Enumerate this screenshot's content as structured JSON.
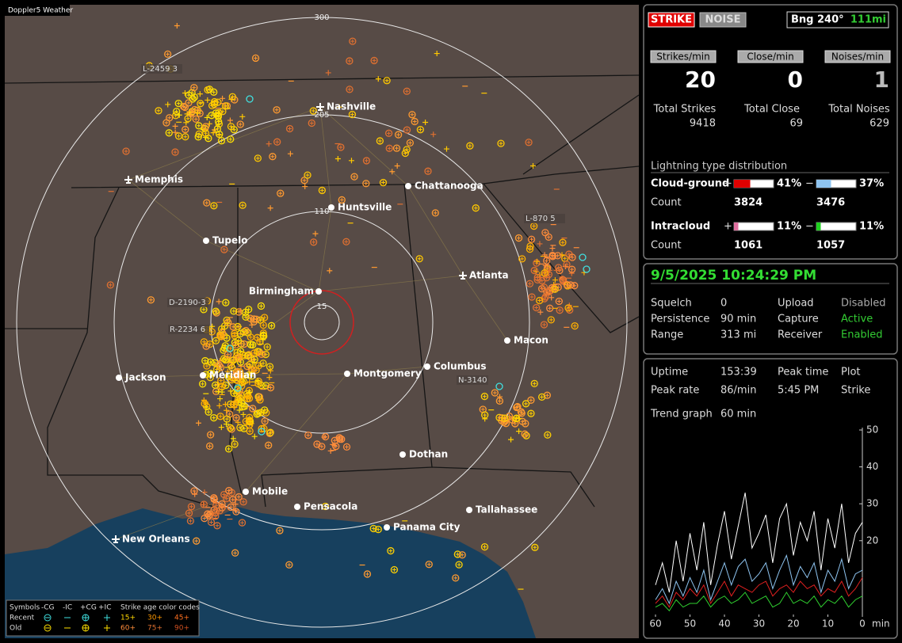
{
  "map": {
    "title": "Doppler5 Weather",
    "range_labels": [
      "300",
      "205",
      "110",
      "15"
    ],
    "cities": [
      "Nashville",
      "Memphis",
      "Chattanooga",
      "Huntsville",
      "Tupelo",
      "Atlanta",
      "Birmingham",
      "Macon",
      "Jackson",
      "Meridian",
      "Montgomery",
      "Columbus",
      "Dothan",
      "Mobile",
      "Pensacola",
      "Tallahassee",
      "Panama City",
      "New Orleans"
    ],
    "storm_labels": [
      "L-2459 3",
      "D-2190-3",
      "R-2234 6",
      "N-3140",
      "L-870 5"
    ],
    "legend": {
      "symbols": "Symbols",
      "types": [
        "-CG",
        "-IC",
        "+CG",
        "+IC"
      ],
      "age_title": "Strike age color codes",
      "rows": [
        "Recent",
        "Old"
      ],
      "ages": [
        [
          "15+",
          "30+",
          "45+"
        ],
        [
          "60+",
          "75+",
          "90+"
        ]
      ]
    }
  },
  "status": {
    "strike": "STRIKE",
    "noise": "NOISE",
    "bearing": "Bng 240°",
    "distance": "111mi"
  },
  "rates": {
    "labels": [
      "Strikes/min",
      "Close/min",
      "Noises/min"
    ],
    "values": [
      20,
      0,
      1
    ],
    "total_labels": [
      "Total Strikes",
      "Total Close",
      "Total Noises"
    ],
    "totals": [
      9418,
      69,
      629
    ]
  },
  "distribution": {
    "title": "Lightning type distribution",
    "rows": [
      {
        "name": "Cloud-ground",
        "plus": "+",
        "plus_pct": {
          "value": 41,
          "label": "41%"
        },
        "minus": "−",
        "minus_pct": {
          "value": 37,
          "label": "37%"
        },
        "count_label": "Count",
        "plus_count": 3824,
        "minus_count": 3476
      },
      {
        "name": "Intracloud",
        "plus": "+",
        "plus_pct": {
          "value": 11,
          "label": "11%"
        },
        "minus": "−",
        "minus_pct": {
          "value": 11,
          "label": "11%"
        },
        "count_label": "Count",
        "plus_count": 1061,
        "minus_count": 1057
      }
    ]
  },
  "datetime": "9/5/2025 10:24:29 PM",
  "settings": {
    "rows": [
      [
        "Squelch",
        "0",
        "Upload",
        "Disabled"
      ],
      [
        "Persistence",
        "90 min",
        "Capture",
        "Active"
      ],
      [
        "Range",
        "313 mi",
        "Receiver",
        "Enabled"
      ]
    ]
  },
  "stats": {
    "rows": [
      [
        "Uptime",
        "153:39",
        "Peak time",
        "Plot"
      ],
      [
        "Peak rate",
        "86/min",
        "5:45 PM",
        "Strike"
      ]
    ],
    "trend_label": "Trend graph",
    "trend_value": "60 min"
  },
  "chart_data": {
    "type": "line",
    "x": [
      60,
      58,
      56,
      54,
      52,
      50,
      48,
      46,
      44,
      42,
      40,
      38,
      36,
      34,
      32,
      30,
      28,
      26,
      24,
      22,
      20,
      18,
      16,
      14,
      12,
      10,
      8,
      6,
      4,
      2,
      0
    ],
    "xlim": [
      60,
      0
    ],
    "xticks": [
      60,
      50,
      40,
      30,
      20,
      10,
      0
    ],
    "x_unit": "min",
    "ylim": [
      0,
      50
    ],
    "yticks": [
      50,
      40,
      30,
      20
    ],
    "series": [
      {
        "color": "#ffffff",
        "values": [
          8,
          14,
          6,
          20,
          9,
          22,
          12,
          25,
          8,
          19,
          28,
          15,
          24,
          33,
          18,
          22,
          27,
          14,
          26,
          30,
          16,
          25,
          20,
          28,
          12,
          26,
          18,
          30,
          14,
          22,
          25
        ]
      },
      {
        "color": "#8ec4f0",
        "values": [
          4,
          7,
          3,
          9,
          5,
          10,
          6,
          12,
          4,
          9,
          14,
          8,
          13,
          15,
          9,
          11,
          14,
          7,
          12,
          16,
          8,
          13,
          10,
          14,
          6,
          12,
          9,
          15,
          7,
          11,
          12
        ]
      },
      {
        "color": "#e02020",
        "values": [
          3,
          5,
          2,
          6,
          4,
          7,
          5,
          8,
          3,
          6,
          9,
          5,
          8,
          7,
          6,
          8,
          9,
          5,
          7,
          8,
          6,
          9,
          7,
          8,
          5,
          7,
          6,
          9,
          5,
          7,
          10
        ]
      },
      {
        "color": "#30d030",
        "values": [
          2,
          3,
          1,
          4,
          2,
          3,
          3,
          5,
          2,
          4,
          5,
          3,
          4,
          6,
          3,
          4,
          5,
          2,
          3,
          6,
          3,
          4,
          3,
          5,
          2,
          4,
          3,
          5,
          2,
          4,
          5
        ]
      }
    ]
  }
}
